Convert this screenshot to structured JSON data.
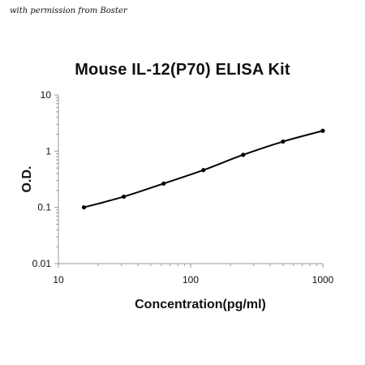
{
  "watermark": "with permission from Boster",
  "chart_data": {
    "type": "line",
    "title": "Mouse IL-12(P70)  ELISA Kit",
    "xlabel": "Concentration(pg/ml)",
    "ylabel": "O.D.",
    "xscale": "log",
    "yscale": "log",
    "xlim": [
      10,
      1000
    ],
    "ylim": [
      0.01,
      10
    ],
    "x_ticks": [
      "10",
      "100",
      "1000"
    ],
    "y_ticks": [
      "10",
      "1",
      "0.1",
      "0.01"
    ],
    "grid": false,
    "series": [
      {
        "x": [
          15.6,
          31.25,
          62.5,
          125,
          250,
          500,
          1000
        ],
        "y": [
          0.1,
          0.155,
          0.265,
          0.46,
          0.86,
          1.48,
          2.3
        ]
      }
    ],
    "color": "#000000"
  }
}
